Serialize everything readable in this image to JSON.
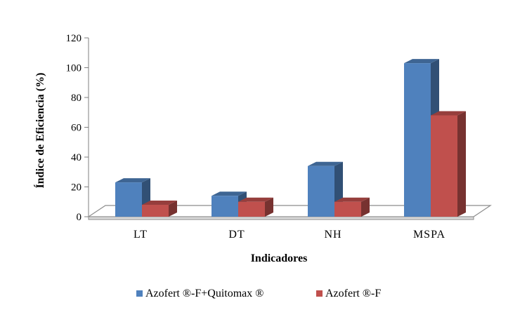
{
  "chart_data": {
    "type": "bar",
    "title": "",
    "xlabel": "Indicadores",
    "ylabel": "Índice de Eficiencia (%)",
    "ylim": [
      0,
      120
    ],
    "yticks": [
      "0",
      "20",
      "40",
      "60",
      "80",
      "100",
      "120"
    ],
    "categories": [
      "LT",
      "DT",
      "NH",
      "MSPA"
    ],
    "series": [
      {
        "name": "Azofert ®-F+Quitomax ®",
        "values": [
          23,
          14,
          34,
          103
        ],
        "color": "#4F81BD"
      },
      {
        "name": "Azofert ®-F",
        "values": [
          8,
          10,
          10,
          68
        ],
        "color": "#C0504D"
      }
    ],
    "grid": false,
    "legend_position": "bottom"
  }
}
